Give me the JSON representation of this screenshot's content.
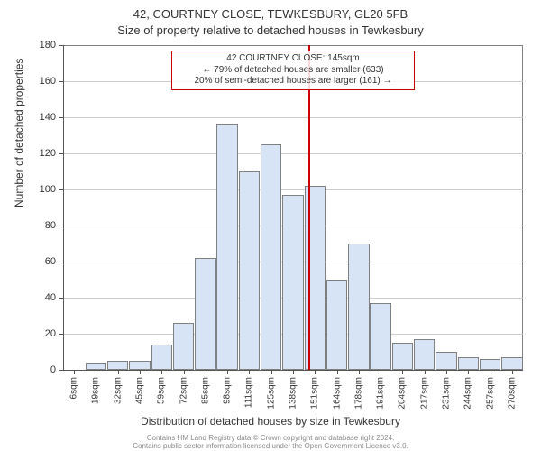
{
  "header": {
    "address": "42, COURTNEY CLOSE, TEWKESBURY, GL20 5FB",
    "subtitle": "Size of property relative to detached houses in Tewkesbury"
  },
  "axes": {
    "ylabel": "Number of detached properties",
    "xlabel": "Distribution of detached houses by size in Tewkesbury"
  },
  "chart": {
    "type": "histogram",
    "background_color": "#ffffff",
    "grid_color": "#cccccc",
    "axis_color": "#555555",
    "ylim": [
      0,
      180
    ],
    "ytick_step": 20,
    "bar_fill": "#d6e4f5",
    "bar_border": "#808080",
    "categories": [
      "6sqm",
      "19sqm",
      "32sqm",
      "45sqm",
      "59sqm",
      "72sqm",
      "85sqm",
      "98sqm",
      "111sqm",
      "125sqm",
      "138sqm",
      "151sqm",
      "164sqm",
      "178sqm",
      "191sqm",
      "204sqm",
      "217sqm",
      "231sqm",
      "244sqm",
      "257sqm",
      "270sqm"
    ],
    "values": [
      0,
      4,
      5,
      5,
      14,
      26,
      62,
      136,
      110,
      125,
      97,
      102,
      50,
      70,
      37,
      15,
      17,
      10,
      7,
      6,
      7
    ]
  },
  "marker": {
    "size_index": 10.7,
    "color": "#cc0000",
    "callout_border": "#cc0000",
    "line1": "42 COURTNEY CLOSE: 145sqm",
    "line2": "← 79% of detached houses are smaller (633)",
    "line3": "20% of semi-detached houses are larger (161) →"
  },
  "footer": {
    "line1": "Contains HM Land Registry data © Crown copyright and database right 2024.",
    "line2": "Contains public sector information licensed under the Open Government Licence v3.0."
  }
}
